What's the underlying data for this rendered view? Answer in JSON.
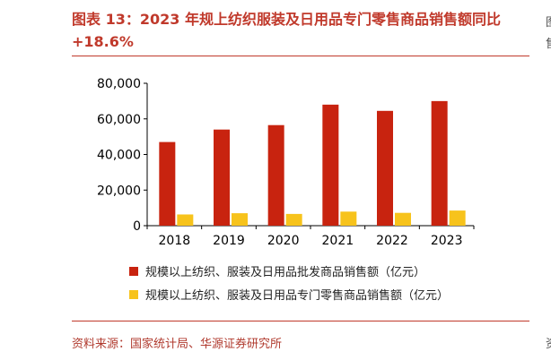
{
  "header": {
    "title": "图表 13：2023 年规上纺织服装及日用品专门零售商品销售额同比+18.6%"
  },
  "footer": {
    "source": "资料来源：国家统计局、华源证券研究所"
  },
  "colors": {
    "title": "#c0392b",
    "series1": "#c8230f",
    "series2": "#f7c31c"
  },
  "chart_data": {
    "type": "bar",
    "categories": [
      "2018",
      "2019",
      "2020",
      "2021",
      "2022",
      "2023"
    ],
    "series": [
      {
        "name": "规模以上纺织、服装及日用品批发商品销售额（亿元）",
        "values": [
          47000,
          54000,
          56500,
          68000,
          64500,
          70000
        ]
      },
      {
        "name": "规模以上纺织、服装及日用品专门零售商品销售额（亿元）",
        "values": [
          6300,
          7000,
          6600,
          7900,
          7200,
          8500
        ]
      }
    ],
    "yticks": [
      "0",
      "20,000",
      "40,000",
      "60,000",
      "80,000"
    ],
    "ylim": [
      0,
      80000
    ],
    "grid": false,
    "legend": "bottom"
  }
}
